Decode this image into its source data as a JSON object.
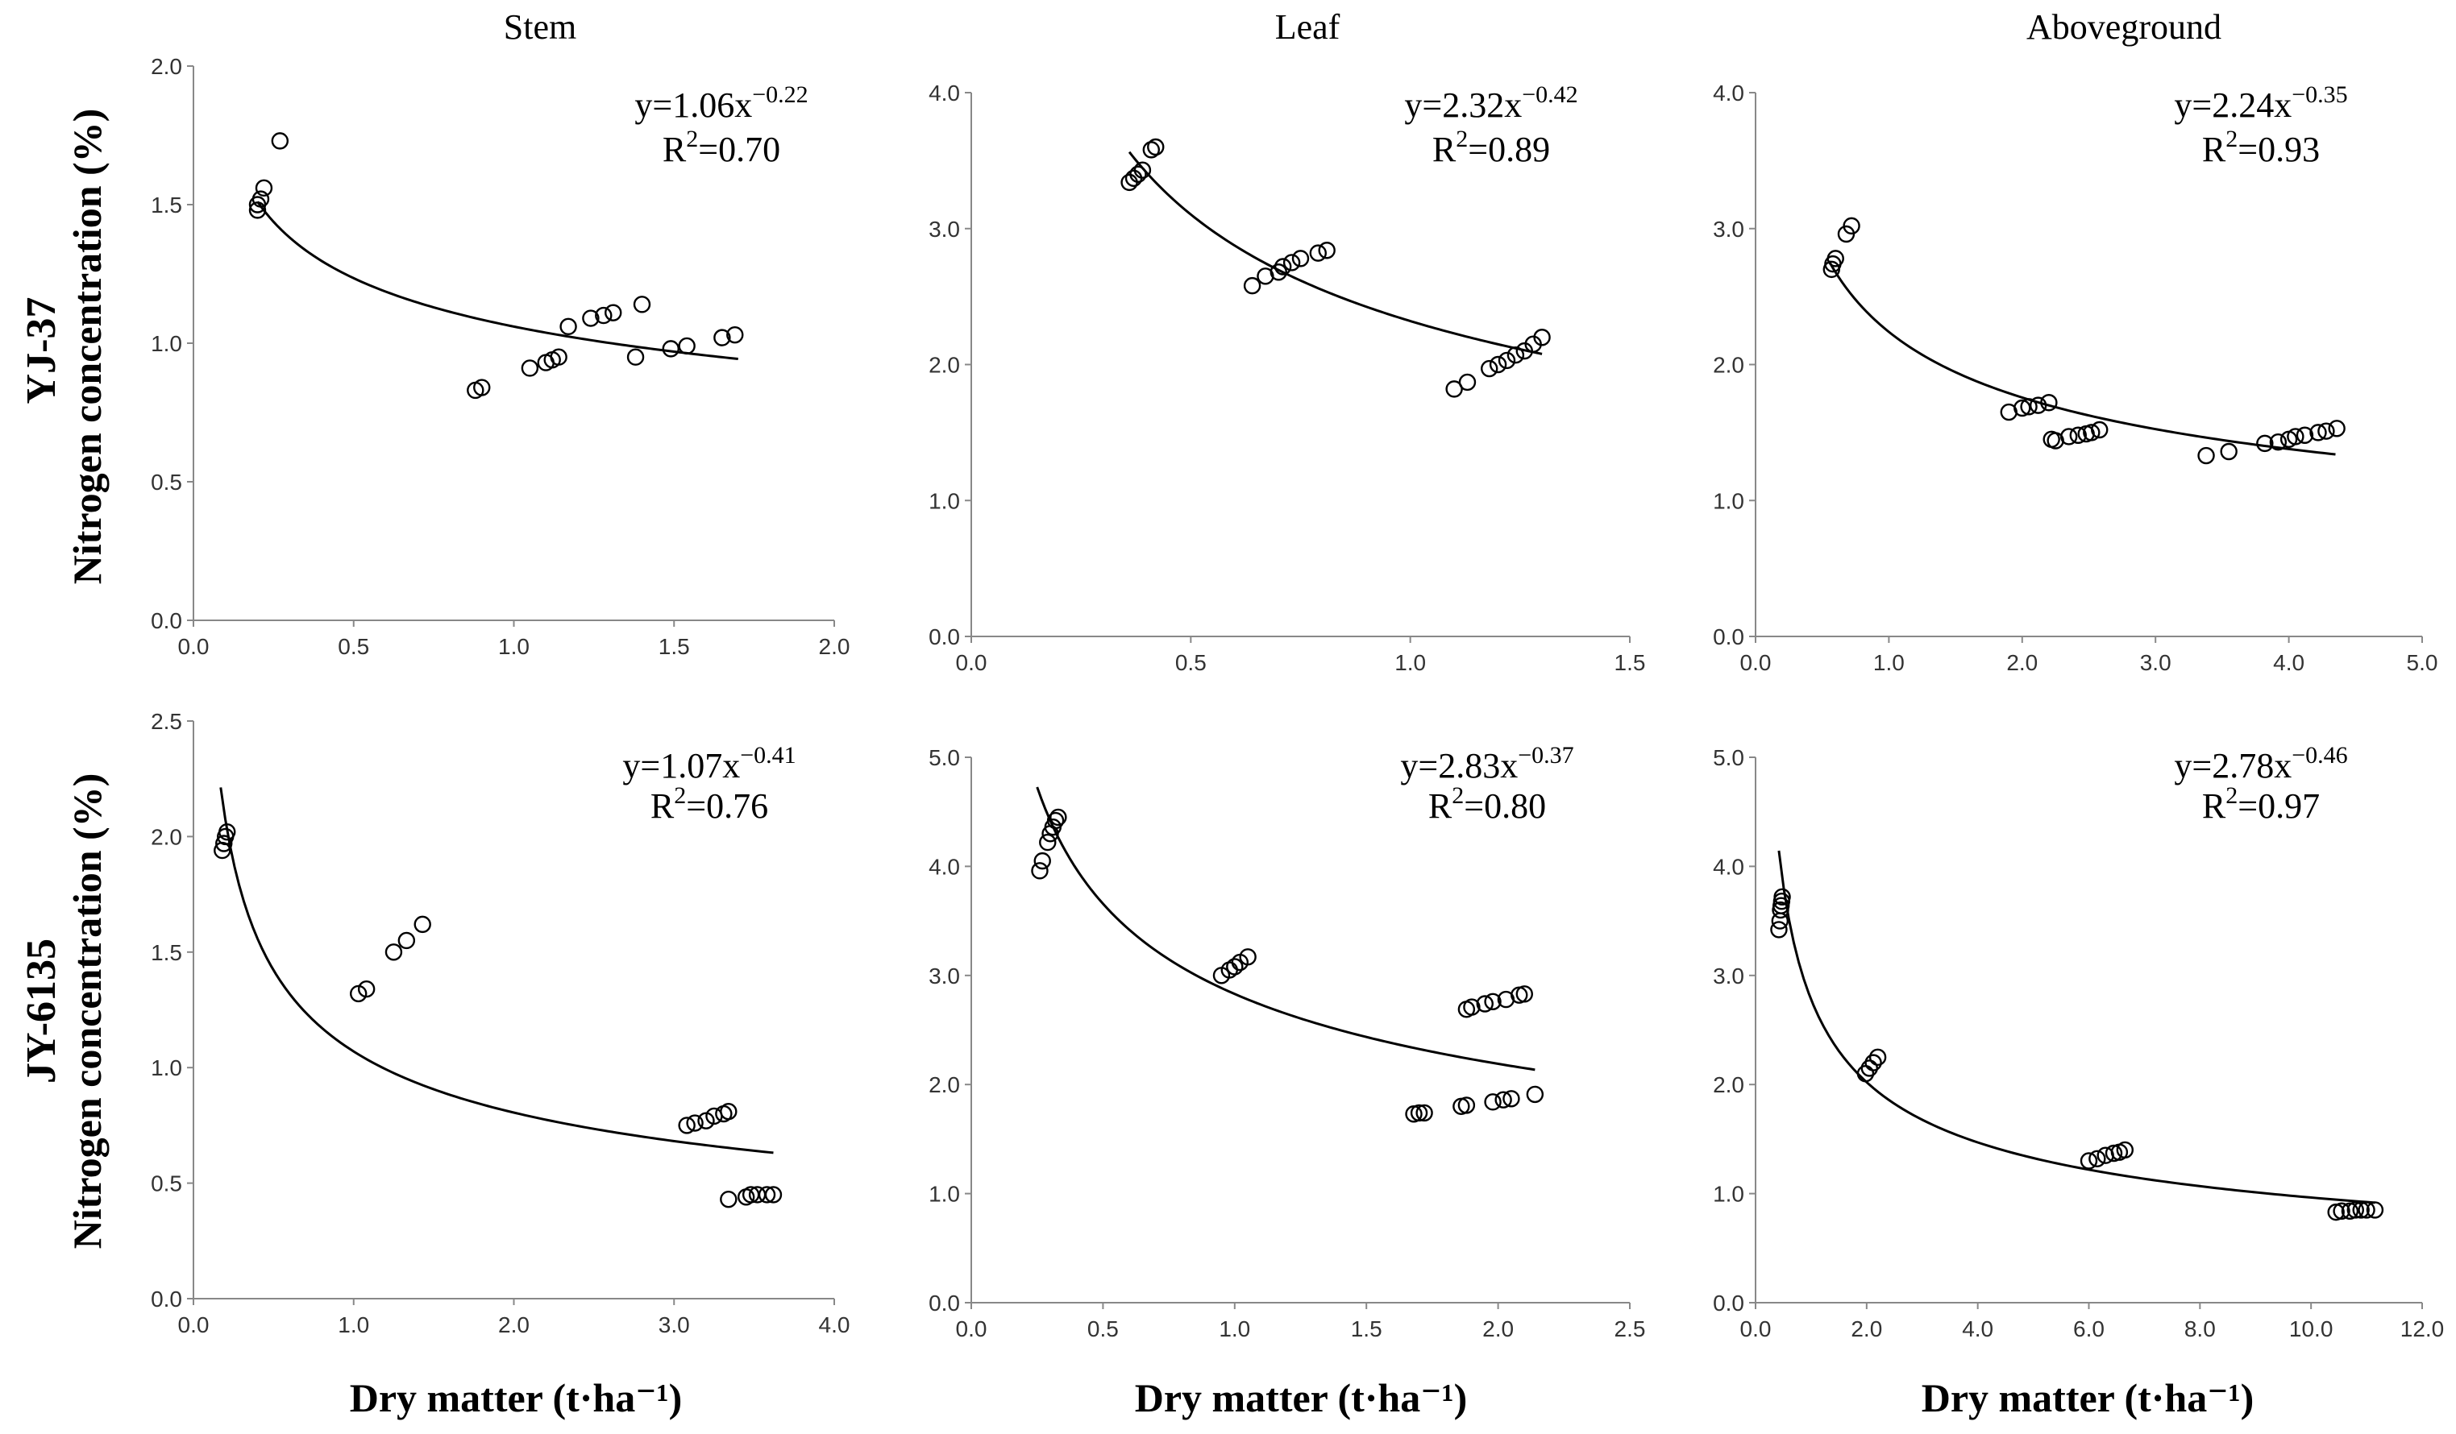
{
  "figure": {
    "row_labels": [
      "YJ-37",
      "JY-6135"
    ],
    "ylabel": "Nitrogen concentration  (%)",
    "xlabel": "Dry matter (t·ha⁻¹)"
  },
  "chart_data": [
    {
      "type": "scatter",
      "row": 0,
      "col": 0,
      "title": "Stem",
      "equation": {
        "prefix": "y=1.06x",
        "exponent": "−0.22",
        "r2_prefix": "R",
        "r2_value": "=0.70"
      },
      "fit": {
        "a": 1.06,
        "b": -0.22,
        "xrange": [
          0.2,
          1.7
        ]
      },
      "xlim": [
        0,
        2.0
      ],
      "xticks": [
        0,
        0.5,
        1.0,
        1.5,
        2.0
      ],
      "xticklabels": [
        "0.0",
        "0.5",
        "1.0",
        "1.5",
        "2.0"
      ],
      "ylim": [
        0,
        2.0
      ],
      "yticks": [
        0,
        0.5,
        1.0,
        1.5,
        2.0
      ],
      "yticklabels": [
        "0.0",
        "0.5",
        "1.0",
        "1.5",
        "2.0"
      ],
      "points": [
        [
          0.2,
          1.48
        ],
        [
          0.2,
          1.5
        ],
        [
          0.21,
          1.52
        ],
        [
          0.22,
          1.56
        ],
        [
          0.27,
          1.73
        ],
        [
          0.88,
          0.83
        ],
        [
          0.9,
          0.84
        ],
        [
          1.05,
          0.91
        ],
        [
          1.1,
          0.93
        ],
        [
          1.12,
          0.94
        ],
        [
          1.14,
          0.95
        ],
        [
          1.17,
          1.06
        ],
        [
          1.24,
          1.09
        ],
        [
          1.28,
          1.1
        ],
        [
          1.31,
          1.11
        ],
        [
          1.38,
          0.95
        ],
        [
          1.4,
          1.14
        ],
        [
          1.49,
          0.98
        ],
        [
          1.54,
          0.99
        ],
        [
          1.65,
          1.02
        ],
        [
          1.69,
          1.03
        ]
      ]
    },
    {
      "type": "scatter",
      "row": 0,
      "col": 1,
      "title": "Leaf",
      "equation": {
        "prefix": "y=2.32x",
        "exponent": "−0.42",
        "r2_prefix": "R",
        "r2_value": "=0.89"
      },
      "fit": {
        "a": 2.32,
        "b": -0.42,
        "xrange": [
          0.36,
          1.3
        ]
      },
      "xlim": [
        0,
        1.5
      ],
      "xticks": [
        0,
        0.5,
        1.0,
        1.5
      ],
      "xticklabels": [
        "0.0",
        "0.5",
        "1.0",
        "1.5"
      ],
      "ylim": [
        0,
        4.0
      ],
      "yticks": [
        0,
        1,
        2,
        3,
        4
      ],
      "yticklabels": [
        "0.0",
        "1.0",
        "2.0",
        "3.0",
        "4.0"
      ],
      "points": [
        [
          0.36,
          3.34
        ],
        [
          0.37,
          3.37
        ],
        [
          0.38,
          3.4
        ],
        [
          0.39,
          3.43
        ],
        [
          0.41,
          3.58
        ],
        [
          0.42,
          3.6
        ],
        [
          0.64,
          2.58
        ],
        [
          0.67,
          2.65
        ],
        [
          0.7,
          2.68
        ],
        [
          0.71,
          2.72
        ],
        [
          0.73,
          2.75
        ],
        [
          0.75,
          2.78
        ],
        [
          0.79,
          2.82
        ],
        [
          0.81,
          2.84
        ],
        [
          1.1,
          1.82
        ],
        [
          1.13,
          1.87
        ],
        [
          1.18,
          1.97
        ],
        [
          1.2,
          2.0
        ],
        [
          1.22,
          2.03
        ],
        [
          1.24,
          2.07
        ],
        [
          1.26,
          2.1
        ],
        [
          1.28,
          2.15
        ],
        [
          1.3,
          2.2
        ]
      ]
    },
    {
      "type": "scatter",
      "row": 0,
      "col": 2,
      "title": "Aboveground",
      "equation": {
        "prefix": "y=2.24x",
        "exponent": "−0.35",
        "r2_prefix": "R",
        "r2_value": "=0.93"
      },
      "fit": {
        "a": 2.24,
        "b": -0.35,
        "xrange": [
          0.55,
          4.35
        ]
      },
      "xlim": [
        0,
        5.0
      ],
      "xticks": [
        0,
        1,
        2,
        3,
        4,
        5
      ],
      "xticklabels": [
        "0.0",
        "1.0",
        "2.0",
        "3.0",
        "4.0",
        "5.0"
      ],
      "ylim": [
        0,
        4.0
      ],
      "yticks": [
        0,
        1,
        2,
        3,
        4
      ],
      "yticklabels": [
        "0.0",
        "1.0",
        "2.0",
        "3.0",
        "4.0"
      ],
      "points": [
        [
          0.57,
          2.7
        ],
        [
          0.58,
          2.74
        ],
        [
          0.6,
          2.78
        ],
        [
          0.68,
          2.96
        ],
        [
          0.72,
          3.02
        ],
        [
          1.9,
          1.65
        ],
        [
          2.0,
          1.68
        ],
        [
          2.05,
          1.69
        ],
        [
          2.12,
          1.7
        ],
        [
          2.2,
          1.72
        ],
        [
          2.22,
          1.45
        ],
        [
          2.25,
          1.44
        ],
        [
          2.35,
          1.47
        ],
        [
          2.42,
          1.48
        ],
        [
          2.48,
          1.49
        ],
        [
          2.52,
          1.5
        ],
        [
          2.58,
          1.52
        ],
        [
          3.38,
          1.33
        ],
        [
          3.55,
          1.36
        ],
        [
          3.82,
          1.42
        ],
        [
          3.92,
          1.43
        ],
        [
          4.0,
          1.45
        ],
        [
          4.05,
          1.47
        ],
        [
          4.12,
          1.48
        ],
        [
          4.22,
          1.5
        ],
        [
          4.28,
          1.51
        ],
        [
          4.36,
          1.53
        ]
      ]
    },
    {
      "type": "scatter",
      "row": 1,
      "col": 0,
      "title": "",
      "equation": {
        "prefix": "y=1.07x",
        "exponent": "−0.41",
        "r2_prefix": "R",
        "r2_value": "=0.76"
      },
      "fit": {
        "a": 1.07,
        "b": -0.41,
        "xrange": [
          0.17,
          3.62
        ]
      },
      "xlim": [
        0,
        4.0
      ],
      "xticks": [
        0,
        1,
        2,
        3,
        4
      ],
      "xticklabels": [
        "0.0",
        "1.0",
        "2.0",
        "3.0",
        "4.0"
      ],
      "ylim": [
        0,
        2.5
      ],
      "yticks": [
        0,
        0.5,
        1.0,
        1.5,
        2.0,
        2.5
      ],
      "yticklabels": [
        "0.0",
        "0.5",
        "1.0",
        "1.5",
        "2.0",
        "2.5"
      ],
      "points": [
        [
          0.18,
          1.94
        ],
        [
          0.19,
          1.97
        ],
        [
          0.2,
          2.0
        ],
        [
          0.21,
          2.02
        ],
        [
          1.03,
          1.32
        ],
        [
          1.08,
          1.34
        ],
        [
          1.25,
          1.5
        ],
        [
          1.33,
          1.55
        ],
        [
          1.43,
          1.62
        ],
        [
          3.08,
          0.75
        ],
        [
          3.13,
          0.76
        ],
        [
          3.2,
          0.77
        ],
        [
          3.25,
          0.79
        ],
        [
          3.31,
          0.8
        ],
        [
          3.34,
          0.81
        ],
        [
          3.34,
          0.43
        ],
        [
          3.45,
          0.44
        ],
        [
          3.48,
          0.45
        ],
        [
          3.52,
          0.45
        ],
        [
          3.58,
          0.45
        ],
        [
          3.62,
          0.45
        ]
      ]
    },
    {
      "type": "scatter",
      "row": 1,
      "col": 1,
      "title": "",
      "equation": {
        "prefix": "y=2.83x",
        "exponent": "−0.37",
        "r2_prefix": "R",
        "r2_value": "=0.80"
      },
      "fit": {
        "a": 2.83,
        "b": -0.37,
        "xrange": [
          0.25,
          2.14
        ]
      },
      "xlim": [
        0,
        2.5
      ],
      "xticks": [
        0,
        0.5,
        1.0,
        1.5,
        2.0,
        2.5
      ],
      "xticklabels": [
        "0.0",
        "0.5",
        "1.0",
        "1.5",
        "2.0",
        "2.5"
      ],
      "ylim": [
        0,
        5.0
      ],
      "yticks": [
        0,
        1,
        2,
        3,
        4,
        5
      ],
      "yticklabels": [
        "0.0",
        "1.0",
        "2.0",
        "3.0",
        "4.0",
        "5.0"
      ],
      "points": [
        [
          0.26,
          3.96
        ],
        [
          0.27,
          4.05
        ],
        [
          0.29,
          4.22
        ],
        [
          0.3,
          4.3
        ],
        [
          0.31,
          4.36
        ],
        [
          0.32,
          4.42
        ],
        [
          0.33,
          4.45
        ],
        [
          0.95,
          3.0
        ],
        [
          0.98,
          3.05
        ],
        [
          1.0,
          3.08
        ],
        [
          1.02,
          3.12
        ],
        [
          1.05,
          3.17
        ],
        [
          1.68,
          1.73
        ],
        [
          1.7,
          1.74
        ],
        [
          1.72,
          1.74
        ],
        [
          1.86,
          1.8
        ],
        [
          1.88,
          1.81
        ],
        [
          1.88,
          2.69
        ],
        [
          1.9,
          2.71
        ],
        [
          1.95,
          2.74
        ],
        [
          1.98,
          2.76
        ],
        [
          1.98,
          1.84
        ],
        [
          2.02,
          1.86
        ],
        [
          2.03,
          2.78
        ],
        [
          2.05,
          1.87
        ],
        [
          2.08,
          2.82
        ],
        [
          2.1,
          2.83
        ],
        [
          2.14,
          1.91
        ]
      ]
    },
    {
      "type": "scatter",
      "row": 1,
      "col": 2,
      "title": "",
      "equation": {
        "prefix": "y=2.78x",
        "exponent": "−0.46",
        "r2_prefix": "R",
        "r2_value": "=0.97"
      },
      "fit": {
        "a": 2.78,
        "b": -0.46,
        "xrange": [
          0.42,
          11.15
        ]
      },
      "xlim": [
        0,
        12.0
      ],
      "xticks": [
        0,
        2,
        4,
        6,
        8,
        10,
        12
      ],
      "xticklabels": [
        "0.0",
        "2.0",
        "4.0",
        "6.0",
        "8.0",
        "10.0",
        "12.0"
      ],
      "ylim": [
        0,
        5.0
      ],
      "yticks": [
        0,
        1,
        2,
        3,
        4,
        5
      ],
      "yticklabels": [
        "0.0",
        "1.0",
        "2.0",
        "3.0",
        "4.0",
        "5.0"
      ],
      "points": [
        [
          0.42,
          3.42
        ],
        [
          0.44,
          3.5
        ],
        [
          0.45,
          3.6
        ],
        [
          0.46,
          3.64
        ],
        [
          0.47,
          3.68
        ],
        [
          0.48,
          3.72
        ],
        [
          1.98,
          2.1
        ],
        [
          2.05,
          2.15
        ],
        [
          2.12,
          2.2
        ],
        [
          2.2,
          2.25
        ],
        [
          6.0,
          1.3
        ],
        [
          6.15,
          1.32
        ],
        [
          6.3,
          1.35
        ],
        [
          6.45,
          1.37
        ],
        [
          6.55,
          1.38
        ],
        [
          6.65,
          1.4
        ],
        [
          10.45,
          0.83
        ],
        [
          10.55,
          0.84
        ],
        [
          10.7,
          0.84
        ],
        [
          10.8,
          0.85
        ],
        [
          10.9,
          0.85
        ],
        [
          11.0,
          0.85
        ],
        [
          11.15,
          0.85
        ]
      ]
    }
  ]
}
